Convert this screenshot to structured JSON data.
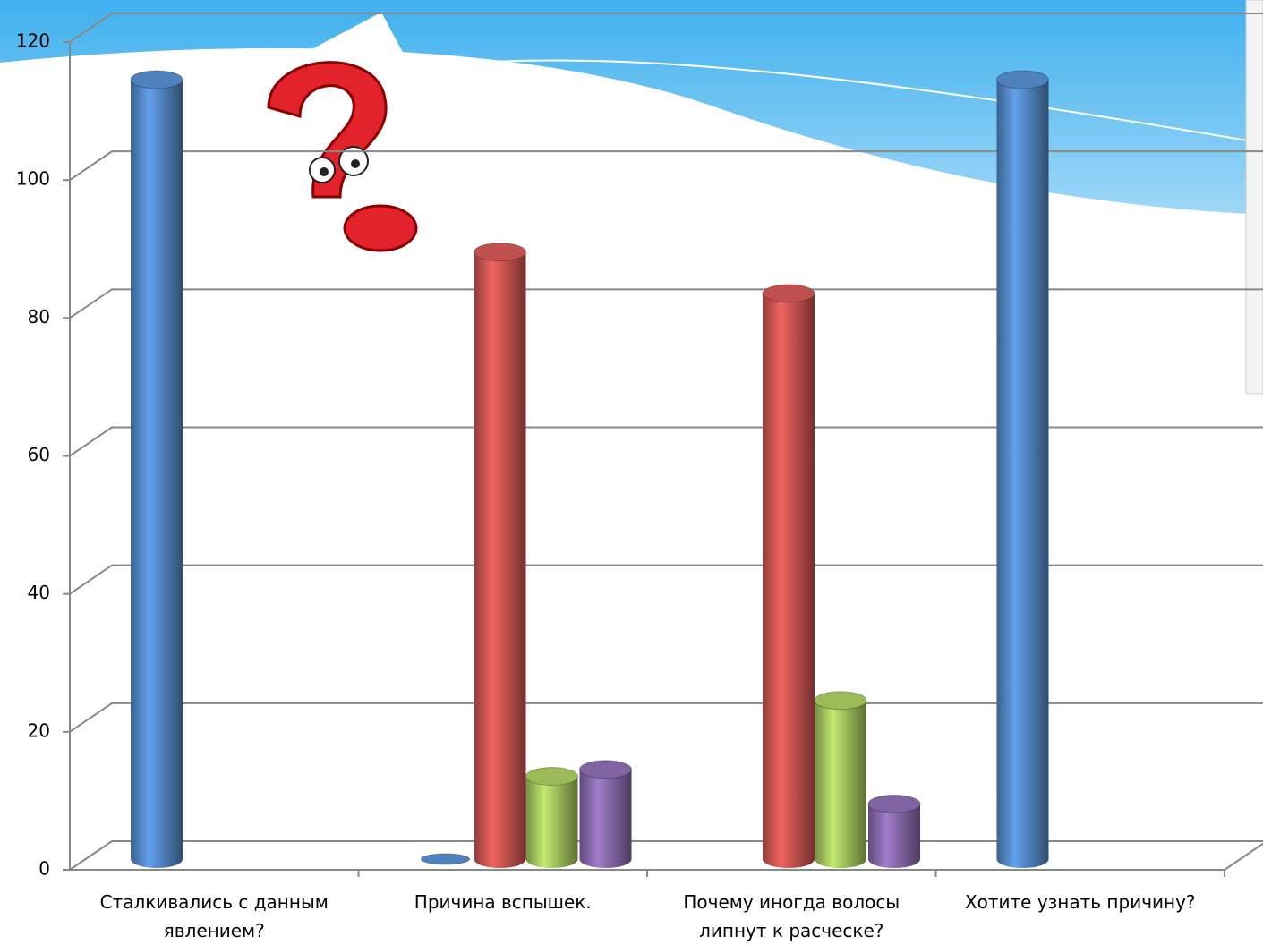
{
  "chart_data": {
    "type": "bar3d",
    "categories": [
      "Сталкивались с данным явлением?",
      "Причина вспышек.",
      "Почему иногда волосы липнут к расческе?",
      "Хотите узнать причину?"
    ],
    "series": [
      {
        "color": "#4f81bd",
        "values": [
          113,
          0,
          null,
          113
        ]
      },
      {
        "color": "#c0504d",
        "values": [
          null,
          88,
          82,
          null
        ]
      },
      {
        "color": "#9bbb59",
        "values": [
          null,
          12,
          23,
          null
        ]
      },
      {
        "color": "#8064a2",
        "values": [
          null,
          13,
          8,
          null
        ]
      }
    ],
    "ylim": [
      0,
      120
    ],
    "yticks": [
      0,
      20,
      40,
      60,
      80,
      100,
      120
    ],
    "grid": true
  }
}
